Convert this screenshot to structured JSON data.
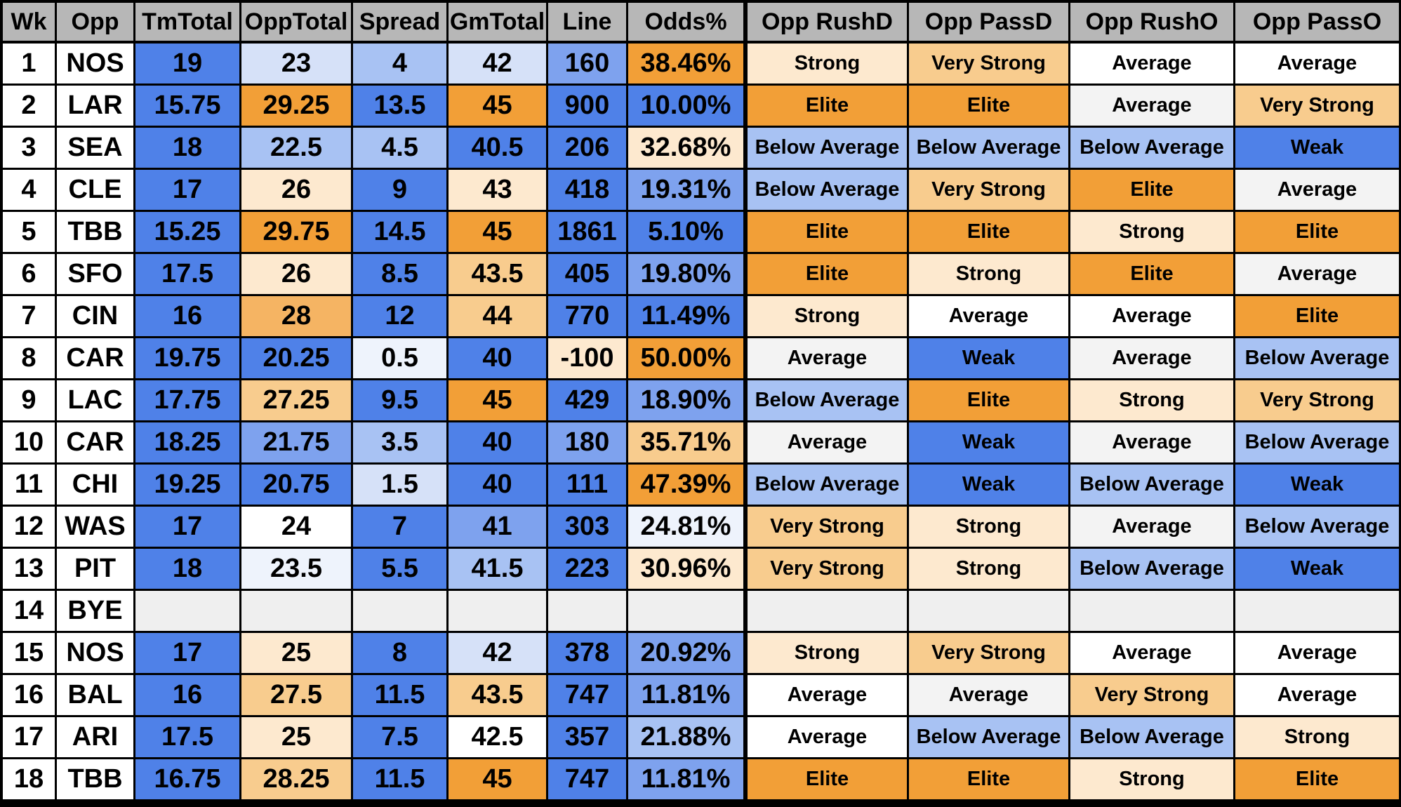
{
  "colors": {
    "blue_dark": "#4f81e8",
    "blue_mid": "#7ea2ee",
    "blue_light": "#a8c2f3",
    "blue_pale": "#d6e1f8",
    "blue_faint": "#eef3fc",
    "white": "#ffffff",
    "neutral": "#f3f3f3",
    "orange_pale": "#fde9cf",
    "orange_light": "#f8cc8e",
    "orange_mid": "#f5b463",
    "orange_dark": "#f29f37",
    "header_bg": "#b7b7b7",
    "bye_bg": "#efefef"
  },
  "table": {
    "headers": [
      "Wk",
      "Opp",
      "TmTotal",
      "OppTotal",
      "Spread",
      "GmTotal",
      "Line",
      "Odds%",
      "Opp RushD",
      "Opp PassD",
      "Opp RushO",
      "Opp PassO"
    ],
    "rows": [
      {
        "wk": "1",
        "opp": "NOS",
        "tm": "19",
        "opptot": "23",
        "spread": "4",
        "gm": "42",
        "line": "160",
        "odds": "38.46%",
        "rushd": "Strong",
        "passd": "Very Strong",
        "rusho": "Average",
        "passo": "Average"
      },
      {
        "wk": "2",
        "opp": "LAR",
        "tm": "15.75",
        "opptot": "29.25",
        "spread": "13.5",
        "gm": "45",
        "line": "900",
        "odds": "10.00%",
        "rushd": "Elite",
        "passd": "Elite",
        "rusho": "Average",
        "passo": "Very Strong"
      },
      {
        "wk": "3",
        "opp": "SEA",
        "tm": "18",
        "opptot": "22.5",
        "spread": "4.5",
        "gm": "40.5",
        "line": "206",
        "odds": "32.68%",
        "rushd": "Below Average",
        "passd": "Below Average",
        "rusho": "Below Average",
        "passo": "Weak"
      },
      {
        "wk": "4",
        "opp": "CLE",
        "tm": "17",
        "opptot": "26",
        "spread": "9",
        "gm": "43",
        "line": "418",
        "odds": "19.31%",
        "rushd": "Below Average",
        "passd": "Very Strong",
        "rusho": "Elite",
        "passo": "Average"
      },
      {
        "wk": "5",
        "opp": "TBB",
        "tm": "15.25",
        "opptot": "29.75",
        "spread": "14.5",
        "gm": "45",
        "line": "1861",
        "odds": "5.10%",
        "rushd": "Elite",
        "passd": "Elite",
        "rusho": "Strong",
        "passo": "Elite"
      },
      {
        "wk": "6",
        "opp": "SFO",
        "tm": "17.5",
        "opptot": "26",
        "spread": "8.5",
        "gm": "43.5",
        "line": "405",
        "odds": "19.80%",
        "rushd": "Elite",
        "passd": "Strong",
        "rusho": "Elite",
        "passo": "Average"
      },
      {
        "wk": "7",
        "opp": "CIN",
        "tm": "16",
        "opptot": "28",
        "spread": "12",
        "gm": "44",
        "line": "770",
        "odds": "11.49%",
        "rushd": "Strong",
        "passd": "Average",
        "rusho": "Average",
        "passo": "Elite"
      },
      {
        "wk": "8",
        "opp": "CAR",
        "tm": "19.75",
        "opptot": "20.25",
        "spread": "0.5",
        "gm": "40",
        "line": "-100",
        "odds": "50.00%",
        "rushd": "Average",
        "passd": "Weak",
        "rusho": "Average",
        "passo": "Below Average"
      },
      {
        "wk": "9",
        "opp": "LAC",
        "tm": "17.75",
        "opptot": "27.25",
        "spread": "9.5",
        "gm": "45",
        "line": "429",
        "odds": "18.90%",
        "rushd": "Below Average",
        "passd": "Elite",
        "rusho": "Strong",
        "passo": "Very Strong"
      },
      {
        "wk": "10",
        "opp": "CAR",
        "tm": "18.25",
        "opptot": "21.75",
        "spread": "3.5",
        "gm": "40",
        "line": "180",
        "odds": "35.71%",
        "rushd": "Average",
        "passd": "Weak",
        "rusho": "Average",
        "passo": "Below Average"
      },
      {
        "wk": "11",
        "opp": "CHI",
        "tm": "19.25",
        "opptot": "20.75",
        "spread": "1.5",
        "gm": "40",
        "line": "111",
        "odds": "47.39%",
        "rushd": "Below Average",
        "passd": "Weak",
        "rusho": "Below Average",
        "passo": "Weak"
      },
      {
        "wk": "12",
        "opp": "WAS",
        "tm": "17",
        "opptot": "24",
        "spread": "7",
        "gm": "41",
        "line": "303",
        "odds": "24.81%",
        "rushd": "Very Strong",
        "passd": "Strong",
        "rusho": "Average",
        "passo": "Below Average"
      },
      {
        "wk": "13",
        "opp": "PIT",
        "tm": "18",
        "opptot": "23.5",
        "spread": "5.5",
        "gm": "41.5",
        "line": "223",
        "odds": "30.96%",
        "rushd": "Very Strong",
        "passd": "Strong",
        "rusho": "Below Average",
        "passo": "Weak"
      },
      {
        "wk": "14",
        "opp": "BYE",
        "tm": "",
        "opptot": "",
        "spread": "",
        "gm": "",
        "line": "",
        "odds": "",
        "rushd": "",
        "passd": "",
        "rusho": "",
        "passo": ""
      },
      {
        "wk": "15",
        "opp": "NOS",
        "tm": "17",
        "opptot": "25",
        "spread": "8",
        "gm": "42",
        "line": "378",
        "odds": "20.92%",
        "rushd": "Strong",
        "passd": "Very Strong",
        "rusho": "Average",
        "passo": "Average"
      },
      {
        "wk": "16",
        "opp": "BAL",
        "tm": "16",
        "opptot": "27.5",
        "spread": "11.5",
        "gm": "43.5",
        "line": "747",
        "odds": "11.81%",
        "rushd": "Average",
        "passd": "Average",
        "rusho": "Very Strong",
        "passo": "Average"
      },
      {
        "wk": "17",
        "opp": "ARI",
        "tm": "17.5",
        "opptot": "25",
        "spread": "7.5",
        "gm": "42.5",
        "line": "357",
        "odds": "21.88%",
        "rushd": "Average",
        "passd": "Below Average",
        "rusho": "Below Average",
        "passo": "Strong"
      },
      {
        "wk": "18",
        "opp": "TBB",
        "tm": "16.75",
        "opptot": "28.25",
        "spread": "11.5",
        "gm": "45",
        "line": "747",
        "odds": "11.81%",
        "rushd": "Elite",
        "passd": "Elite",
        "rusho": "Strong",
        "passo": "Elite"
      }
    ],
    "fills": [
      [
        "blue_dark",
        "blue_pale",
        "blue_light",
        "blue_pale",
        "blue_mid",
        "orange_dark",
        "orange_pale",
        "orange_light",
        "white",
        "white"
      ],
      [
        "blue_dark",
        "orange_dark",
        "blue_dark",
        "orange_dark",
        "blue_dark",
        "blue_dark",
        "orange_dark",
        "orange_dark",
        "neutral",
        "orange_light"
      ],
      [
        "blue_dark",
        "blue_light",
        "blue_light",
        "blue_dark",
        "blue_dark",
        "orange_pale",
        "blue_light",
        "blue_light",
        "blue_light",
        "blue_dark"
      ],
      [
        "blue_dark",
        "orange_pale",
        "blue_dark",
        "orange_pale",
        "blue_dark",
        "blue_mid",
        "blue_light",
        "orange_light",
        "orange_dark",
        "neutral"
      ],
      [
        "blue_dark",
        "orange_dark",
        "blue_dark",
        "orange_dark",
        "blue_dark",
        "blue_dark",
        "orange_dark",
        "orange_dark",
        "orange_pale",
        "orange_dark"
      ],
      [
        "blue_dark",
        "orange_pale",
        "blue_dark",
        "orange_light",
        "blue_dark",
        "blue_mid",
        "orange_dark",
        "orange_pale",
        "orange_dark",
        "neutral"
      ],
      [
        "blue_dark",
        "orange_mid",
        "blue_dark",
        "orange_light",
        "blue_dark",
        "blue_dark",
        "orange_pale",
        "white",
        "white",
        "orange_dark"
      ],
      [
        "blue_dark",
        "blue_dark",
        "blue_faint",
        "blue_dark",
        "orange_pale",
        "orange_dark",
        "neutral",
        "blue_dark",
        "neutral",
        "blue_light"
      ],
      [
        "blue_dark",
        "orange_light",
        "blue_dark",
        "orange_dark",
        "blue_dark",
        "blue_mid",
        "blue_light",
        "orange_dark",
        "orange_pale",
        "orange_light"
      ],
      [
        "blue_dark",
        "blue_mid",
        "blue_light",
        "blue_dark",
        "blue_mid",
        "orange_light",
        "neutral",
        "blue_dark",
        "neutral",
        "blue_light"
      ],
      [
        "blue_dark",
        "blue_dark",
        "blue_pale",
        "blue_dark",
        "blue_dark",
        "orange_dark",
        "blue_light",
        "blue_dark",
        "blue_light",
        "blue_dark"
      ],
      [
        "blue_dark",
        "white",
        "blue_dark",
        "blue_mid",
        "blue_dark",
        "blue_faint",
        "orange_light",
        "orange_pale",
        "neutral",
        "blue_light"
      ],
      [
        "blue_dark",
        "blue_faint",
        "blue_dark",
        "blue_light",
        "blue_dark",
        "orange_pale",
        "orange_light",
        "orange_pale",
        "blue_light",
        "blue_dark"
      ],
      [
        "bye_bg",
        "bye_bg",
        "bye_bg",
        "bye_bg",
        "bye_bg",
        "bye_bg",
        "bye_bg",
        "bye_bg",
        "bye_bg",
        "bye_bg"
      ],
      [
        "blue_dark",
        "orange_pale",
        "blue_dark",
        "blue_pale",
        "blue_dark",
        "blue_mid",
        "orange_pale",
        "orange_light",
        "white",
        "white"
      ],
      [
        "blue_dark",
        "orange_light",
        "blue_dark",
        "orange_light",
        "blue_dark",
        "blue_mid",
        "white",
        "neutral",
        "orange_light",
        "white"
      ],
      [
        "blue_dark",
        "orange_pale",
        "blue_dark",
        "white",
        "blue_dark",
        "blue_light",
        "white",
        "blue_light",
        "blue_light",
        "orange_pale"
      ],
      [
        "blue_dark",
        "orange_light",
        "blue_dark",
        "orange_dark",
        "blue_dark",
        "blue_mid",
        "orange_dark",
        "orange_dark",
        "orange_pale",
        "orange_dark"
      ]
    ]
  }
}
